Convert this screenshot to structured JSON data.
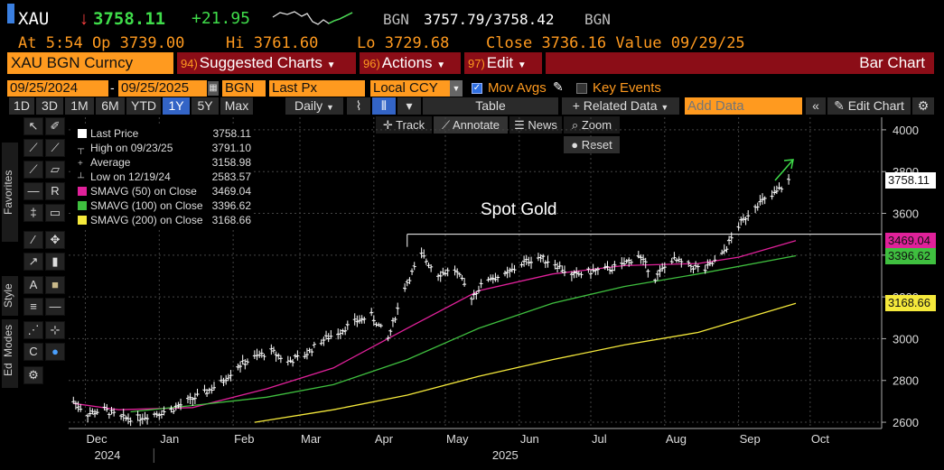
{
  "header": {
    "ticker": "XAU",
    "arrow": "↓",
    "last": "3758.11",
    "change": "+21.95",
    "source": "BGN",
    "bid_ask": "3757.79/3758.42",
    "source2": "BGN",
    "at_label": "At",
    "time": "5:54",
    "op_label": "Op",
    "open": "3739.00",
    "hi_label": "Hi",
    "high": "3761.60",
    "lo_label": "Lo",
    "low": "3729.68",
    "close_label": "Close",
    "close": "3736.16",
    "value_label": "Value",
    "value_date": "09/29/25"
  },
  "menubar": {
    "security": "XAU BGN Curncy",
    "suggested_num": "94)",
    "suggested": "Suggested Charts",
    "actions_num": "96)",
    "actions": "Actions",
    "edit_num": "97)",
    "edit": "Edit",
    "chart_type": "Bar Chart"
  },
  "settings": {
    "start_date": "09/25/2024",
    "end_date": "09/25/2025",
    "source": "BGN",
    "field": "Last Px",
    "currency": "Local CCY",
    "mov_avgs": "Mov Avgs",
    "key_events": "Key Events"
  },
  "periods": [
    "1D",
    "3D",
    "1M",
    "6M",
    "YTD",
    "1Y",
    "5Y",
    "Max"
  ],
  "toolbar": {
    "frequency": "Daily",
    "table": "Table",
    "related": "Related Data",
    "add_data_placeholder": "Add Data",
    "edit_chart": "Edit Chart",
    "track": "Track",
    "annotate": "Annotate",
    "news": "News",
    "zoom": "Zoom",
    "reset": "Reset"
  },
  "side_tabs": {
    "favorites": "Favorites",
    "edit": "Edit",
    "style": "Style",
    "modes": "Modes"
  },
  "legend": [
    {
      "label": "Last Price",
      "value": "3758.11",
      "color": "#ffffff"
    },
    {
      "label": "High on 09/23/25",
      "value": "3791.10",
      "color": ""
    },
    {
      "label": "Average",
      "value": "3158.98",
      "color": ""
    },
    {
      "label": "Low on 12/19/24",
      "value": "2583.57",
      "color": ""
    },
    {
      "label": "SMAVG (50)  on Close",
      "value": "3469.04",
      "color": "#e0219a"
    },
    {
      "label": "SMAVG (100)  on Close",
      "value": "3396.62",
      "color": "#3fbf3f"
    },
    {
      "label": "SMAVG (200)  on Close",
      "value": "3168.66",
      "color": "#f5e93b"
    }
  ],
  "chart_data": {
    "type": "bar",
    "annotation": "Spot Gold",
    "y_ticks": [
      2600,
      2800,
      3000,
      3200,
      3400,
      3600,
      3800,
      4000
    ],
    "ylim": [
      2570,
      4060
    ],
    "x_ticks": [
      "Dec",
      "Jan",
      "Feb",
      "Mar",
      "Apr",
      "May",
      "Jun",
      "Jul",
      "Aug",
      "Sep",
      "Oct"
    ],
    "x_years": [
      "2024",
      "2025"
    ],
    "horizontal_line": 3500,
    "price_tags": [
      {
        "value": "3758.11",
        "num": 3758.11,
        "color": "#ffffff"
      },
      {
        "value": "3469.04",
        "num": 3469.04,
        "color": "#e0219a"
      },
      {
        "value": "3396.62",
        "num": 3396.62,
        "color": "#3fbf3f"
      },
      {
        "value": "3168.66",
        "num": 3168.66,
        "color": "#f5e93b"
      }
    ],
    "series": [
      {
        "name": "Last Price",
        "color": "#ffffff",
        "points": [
          [
            "2024-11-26",
            2700
          ],
          [
            "2024-12-02",
            2640
          ],
          [
            "2024-12-09",
            2660
          ],
          [
            "2024-12-16",
            2620
          ],
          [
            "2024-12-23",
            2620
          ],
          [
            "2024-12-30",
            2640
          ],
          [
            "2025-01-06",
            2660
          ],
          [
            "2025-01-13",
            2700
          ],
          [
            "2025-01-20",
            2740
          ],
          [
            "2025-01-27",
            2790
          ],
          [
            "2025-02-03",
            2870
          ],
          [
            "2025-02-10",
            2910
          ],
          [
            "2025-02-17",
            2940
          ],
          [
            "2025-02-24",
            2890
          ],
          [
            "2025-03-03",
            2920
          ],
          [
            "2025-03-10",
            2990
          ],
          [
            "2025-03-17",
            3030
          ],
          [
            "2025-03-24",
            3080
          ],
          [
            "2025-03-31",
            3110
          ],
          [
            "2025-04-07",
            3000
          ],
          [
            "2025-04-14",
            3250
          ],
          [
            "2025-04-21",
            3400
          ],
          [
            "2025-04-28",
            3310
          ],
          [
            "2025-05-05",
            3330
          ],
          [
            "2025-05-12",
            3200
          ],
          [
            "2025-05-19",
            3290
          ],
          [
            "2025-05-26",
            3300
          ],
          [
            "2025-06-02",
            3360
          ],
          [
            "2025-06-09",
            3390
          ],
          [
            "2025-06-16",
            3360
          ],
          [
            "2025-06-23",
            3300
          ],
          [
            "2025-06-30",
            3320
          ],
          [
            "2025-07-07",
            3330
          ],
          [
            "2025-07-14",
            3350
          ],
          [
            "2025-07-21",
            3400
          ],
          [
            "2025-07-28",
            3290
          ],
          [
            "2025-08-04",
            3380
          ],
          [
            "2025-08-11",
            3350
          ],
          [
            "2025-08-18",
            3330
          ],
          [
            "2025-08-25",
            3400
          ],
          [
            "2025-09-01",
            3540
          ],
          [
            "2025-09-08",
            3640
          ],
          [
            "2025-09-15",
            3680
          ],
          [
            "2025-09-22",
            3758
          ]
        ]
      },
      {
        "name": "SMAVG (50)  on Close",
        "color": "#e0219a",
        "points": [
          [
            "2024-11-26",
            2690
          ],
          [
            "2024-12-15",
            2660
          ],
          [
            "2025-01-15",
            2670
          ],
          [
            "2025-02-15",
            2760
          ],
          [
            "2025-03-15",
            2860
          ],
          [
            "2025-04-15",
            3050
          ],
          [
            "2025-05-15",
            3230
          ],
          [
            "2025-06-15",
            3310
          ],
          [
            "2025-07-15",
            3350
          ],
          [
            "2025-08-15",
            3360
          ],
          [
            "2025-09-01",
            3390
          ],
          [
            "2025-09-25",
            3469
          ]
        ]
      },
      {
        "name": "SMAVG (100)  on Close",
        "color": "#3fbf3f",
        "points": [
          [
            "2024-12-20",
            2650
          ],
          [
            "2025-01-15",
            2680
          ],
          [
            "2025-02-15",
            2720
          ],
          [
            "2025-03-15",
            2780
          ],
          [
            "2025-04-15",
            2900
          ],
          [
            "2025-05-15",
            3050
          ],
          [
            "2025-06-15",
            3170
          ],
          [
            "2025-07-15",
            3250
          ],
          [
            "2025-08-15",
            3310
          ],
          [
            "2025-09-25",
            3397
          ]
        ]
      },
      {
        "name": "SMAVG (200)  on Close",
        "color": "#f5e93b",
        "points": [
          [
            "2025-02-10",
            2600
          ],
          [
            "2025-03-15",
            2660
          ],
          [
            "2025-04-15",
            2730
          ],
          [
            "2025-05-15",
            2820
          ],
          [
            "2025-06-15",
            2900
          ],
          [
            "2025-07-15",
            2970
          ],
          [
            "2025-08-15",
            3030
          ],
          [
            "2025-09-25",
            3169
          ]
        ]
      }
    ]
  }
}
